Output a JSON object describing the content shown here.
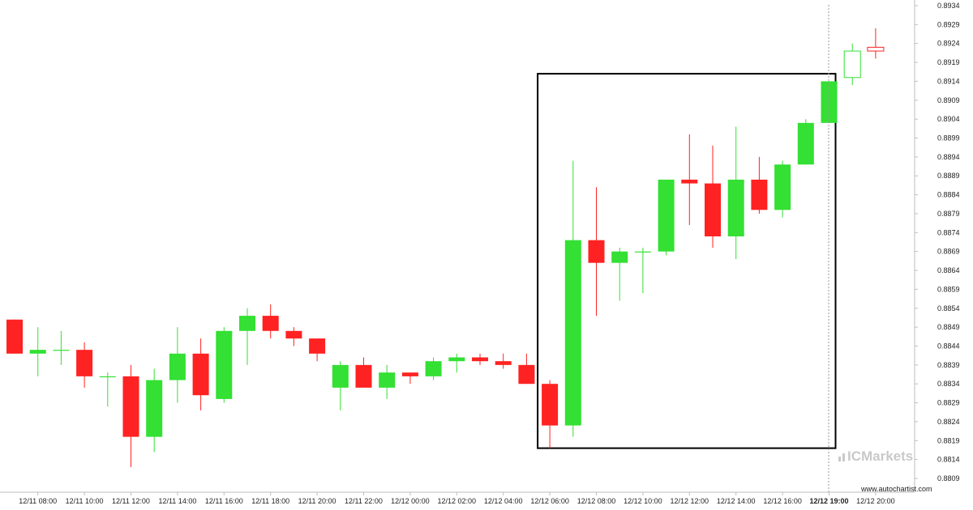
{
  "chart_data": {
    "type": "candlestick",
    "title": "",
    "xlabel": "",
    "ylabel": "",
    "ylim": [
      0.8807,
      0.8935
    ],
    "y_ticks": [
      "0.8934",
      "0.8929",
      "0.8924",
      "0.8919",
      "0.8914",
      "0.8909",
      "0.8904",
      "0.8899",
      "0.8894",
      "0.8889",
      "0.8884",
      "0.8879",
      "0.8874",
      "0.8869",
      "0.8864",
      "0.8859",
      "0.8854",
      "0.8849",
      "0.8844",
      "0.8839",
      "0.8834",
      "0.8829",
      "0.8824",
      "0.8819",
      "0.8814",
      "0.8809"
    ],
    "x_ticks": [
      {
        "label": "12/11 08:00",
        "index": 1
      },
      {
        "label": "12/11 10:00",
        "index": 3
      },
      {
        "label": "12/11 12:00",
        "index": 5
      },
      {
        "label": "12/11 14:00",
        "index": 7
      },
      {
        "label": "12/11 16:00",
        "index": 9
      },
      {
        "label": "12/11 18:00",
        "index": 11
      },
      {
        "label": "12/11 20:00",
        "index": 13
      },
      {
        "label": "12/11 22:00",
        "index": 15
      },
      {
        "label": "12/12 00:00",
        "index": 17
      },
      {
        "label": "12/12 02:00",
        "index": 19
      },
      {
        "label": "12/12 04:00",
        "index": 21
      },
      {
        "label": "12/12 06:00",
        "index": 23
      },
      {
        "label": "12/12 08:00",
        "index": 25
      },
      {
        "label": "12/12 10:00",
        "index": 27
      },
      {
        "label": "12/12 12:00",
        "index": 29
      },
      {
        "label": "12/12 14:00",
        "index": 31
      },
      {
        "label": "12/12 16:00",
        "index": 33
      },
      {
        "label": "12/12 19:00",
        "index": 35,
        "bold": true
      },
      {
        "label": "12/12 20:00",
        "index": 37
      }
    ],
    "candles": [
      {
        "o": 0.8851,
        "h": 0.8851,
        "l": 0.8842,
        "c": 0.8842
      },
      {
        "o": 0.8842,
        "h": 0.8849,
        "l": 0.8836,
        "c": 0.8843
      },
      {
        "o": 0.8843,
        "h": 0.8848,
        "l": 0.8839,
        "c": 0.8843
      },
      {
        "o": 0.8843,
        "h": 0.8845,
        "l": 0.8833,
        "c": 0.8836
      },
      {
        "o": 0.8836,
        "h": 0.8837,
        "l": 0.8828,
        "c": 0.8836
      },
      {
        "o": 0.8836,
        "h": 0.8839,
        "l": 0.8812,
        "c": 0.882
      },
      {
        "o": 0.882,
        "h": 0.8838,
        "l": 0.8816,
        "c": 0.8835
      },
      {
        "o": 0.8835,
        "h": 0.8849,
        "l": 0.8829,
        "c": 0.8842
      },
      {
        "o": 0.8842,
        "h": 0.8846,
        "l": 0.8827,
        "c": 0.8831
      },
      {
        "o": 0.883,
        "h": 0.8849,
        "l": 0.8829,
        "c": 0.8848
      },
      {
        "o": 0.8848,
        "h": 0.8854,
        "l": 0.8839,
        "c": 0.8852
      },
      {
        "o": 0.8852,
        "h": 0.8855,
        "l": 0.8846,
        "c": 0.8848
      },
      {
        "o": 0.8848,
        "h": 0.8849,
        "l": 0.8844,
        "c": 0.8846
      },
      {
        "o": 0.8846,
        "h": 0.8846,
        "l": 0.884,
        "c": 0.8842
      },
      {
        "o": 0.8833,
        "h": 0.884,
        "l": 0.8827,
        "c": 0.8839
      },
      {
        "o": 0.8839,
        "h": 0.8841,
        "l": 0.8833,
        "c": 0.8833
      },
      {
        "o": 0.8833,
        "h": 0.8839,
        "l": 0.883,
        "c": 0.8837
      },
      {
        "o": 0.8837,
        "h": 0.8837,
        "l": 0.8834,
        "c": 0.8836
      },
      {
        "o": 0.8836,
        "h": 0.8841,
        "l": 0.8835,
        "c": 0.884
      },
      {
        "o": 0.884,
        "h": 0.8842,
        "l": 0.8837,
        "c": 0.8841
      },
      {
        "o": 0.8841,
        "h": 0.8842,
        "l": 0.8839,
        "c": 0.884
      },
      {
        "o": 0.884,
        "h": 0.8842,
        "l": 0.8838,
        "c": 0.8839
      },
      {
        "o": 0.8839,
        "h": 0.8842,
        "l": 0.8834,
        "c": 0.8834
      },
      {
        "o": 0.8834,
        "h": 0.8835,
        "l": 0.8817,
        "c": 0.8823
      },
      {
        "o": 0.8823,
        "h": 0.8893,
        "l": 0.882,
        "c": 0.8872
      },
      {
        "o": 0.8872,
        "h": 0.8886,
        "l": 0.8852,
        "c": 0.8866
      },
      {
        "o": 0.8866,
        "h": 0.887,
        "l": 0.8856,
        "c": 0.8869
      },
      {
        "o": 0.8869,
        "h": 0.887,
        "l": 0.8858,
        "c": 0.8869
      },
      {
        "o": 0.8869,
        "h": 0.8888,
        "l": 0.8868,
        "c": 0.8888
      },
      {
        "o": 0.8888,
        "h": 0.89,
        "l": 0.8876,
        "c": 0.8887
      },
      {
        "o": 0.8887,
        "h": 0.8897,
        "l": 0.887,
        "c": 0.8873
      },
      {
        "o": 0.8873,
        "h": 0.8902,
        "l": 0.8867,
        "c": 0.8888
      },
      {
        "o": 0.8888,
        "h": 0.8894,
        "l": 0.8879,
        "c": 0.888
      },
      {
        "o": 0.888,
        "h": 0.8893,
        "l": 0.8878,
        "c": 0.8892
      },
      {
        "o": 0.8892,
        "h": 0.8904,
        "l": 0.8892,
        "c": 0.8903
      },
      {
        "o": 0.8903,
        "h": 0.8914,
        "l": 0.8903,
        "c": 0.8914
      },
      {
        "o": 0.8915,
        "h": 0.8924,
        "l": 0.8913,
        "c": 0.8922,
        "outline": true
      },
      {
        "o": 0.8923,
        "h": 0.8928,
        "l": 0.892,
        "c": 0.8922,
        "outline": true
      }
    ],
    "pattern_box": {
      "from_index": 23,
      "to_index": 35,
      "top": 0.8916,
      "bottom": 0.8817
    },
    "grid": false,
    "colors": {
      "up": "#33e033",
      "down": "#ff2222",
      "box": "#000000",
      "axis": "#bdbdbd",
      "marker": "#999999"
    }
  },
  "branding": {
    "logo_text": "ICMarkets",
    "source_text": "www.autochartist.com"
  }
}
